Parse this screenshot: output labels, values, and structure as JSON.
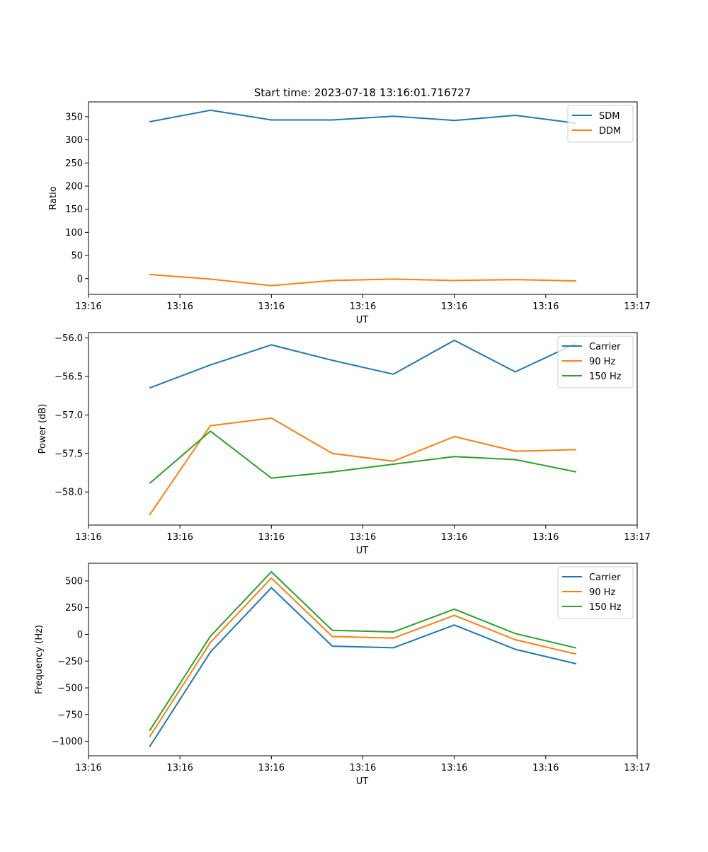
{
  "chart_data": [
    {
      "type": "line",
      "title": "Start time: 2023-07-18 13:16:01.716727",
      "xlabel": "UT",
      "ylabel": "Ratio",
      "x": [
        1,
        2,
        3,
        4,
        5,
        6,
        7,
        8
      ],
      "xticks": [
        0,
        1.5,
        3,
        4.5,
        6,
        7.5,
        9
      ],
      "xtick_labels": [
        "13:16",
        "13:16",
        "13:16",
        "13:16",
        "13:16",
        "13:16",
        "13:17"
      ],
      "xlim": [
        0.0,
        9.0
      ],
      "ylim": [
        -34,
        382
      ],
      "yticks": [
        0,
        50,
        100,
        150,
        200,
        250,
        300,
        350
      ],
      "ytick_labels": [
        "0",
        "50",
        "100",
        "150",
        "200",
        "250",
        "300",
        "350"
      ],
      "legend_position": "top-right",
      "series": [
        {
          "name": "SDM",
          "color": "#1f77b4",
          "values": [
            339,
            364,
            343,
            343,
            351,
            342,
            353,
            336
          ]
        },
        {
          "name": "DDM",
          "color": "#ff7f0e",
          "values": [
            9,
            -1,
            -15,
            -4,
            -1,
            -4,
            -2,
            -5
          ]
        }
      ]
    },
    {
      "type": "line",
      "title": "",
      "xlabel": "UT",
      "ylabel": "Power (dB)",
      "x": [
        1,
        2,
        3,
        4,
        5,
        6,
        7,
        8
      ],
      "xticks": [
        0,
        1.5,
        3,
        4.5,
        6,
        7.5,
        9
      ],
      "xtick_labels": [
        "13:16",
        "13:16",
        "13:16",
        "13:16",
        "13:16",
        "13:16",
        "13:17"
      ],
      "xlim": [
        0.0,
        9.0
      ],
      "ylim": [
        -58.43,
        -55.93
      ],
      "yticks": [
        -58.0,
        -57.5,
        -57.0,
        -56.5,
        -56.0
      ],
      "ytick_labels": [
        "−58.0",
        "−57.5",
        "−57.0",
        "−56.5",
        "−56.0"
      ],
      "legend_position": "top-right",
      "series": [
        {
          "name": "Carrier",
          "color": "#1f77b4",
          "values": [
            -56.65,
            -56.35,
            -56.09,
            -56.29,
            -56.47,
            -56.03,
            -56.44,
            -56.07
          ]
        },
        {
          "name": "90 Hz",
          "color": "#ff7f0e",
          "values": [
            -58.3,
            -57.14,
            -57.04,
            -57.5,
            -57.6,
            -57.28,
            -57.47,
            -57.45
          ]
        },
        {
          "name": "150 Hz",
          "color": "#2ca02c",
          "values": [
            -57.89,
            -57.21,
            -57.82,
            -57.74,
            -57.64,
            -57.54,
            -57.58,
            -57.74
          ]
        }
      ]
    },
    {
      "type": "line",
      "title": "",
      "xlabel": "UT",
      "ylabel": "Frequency (Hz)",
      "x": [
        1,
        2,
        3,
        4,
        5,
        6,
        7,
        8
      ],
      "xticks": [
        0,
        1.5,
        3,
        4.5,
        6,
        7.5,
        9
      ],
      "xtick_labels": [
        "13:16",
        "13:16",
        "13:16",
        "13:16",
        "13:16",
        "13:16",
        "13:17"
      ],
      "xlim": [
        0.0,
        9.0
      ],
      "ylim": [
        -1135,
        665
      ],
      "yticks": [
        -1000,
        -750,
        -500,
        -250,
        0,
        250,
        500
      ],
      "ytick_labels": [
        "−1000",
        "−750",
        "−500",
        "−250",
        "0",
        "250",
        "500"
      ],
      "legend_position": "top-right",
      "series": [
        {
          "name": "Carrier",
          "color": "#1f77b4",
          "values": [
            -1052,
            -165,
            437,
            -110,
            -125,
            88,
            -140,
            -275
          ]
        },
        {
          "name": "90 Hz",
          "color": "#ff7f0e",
          "values": [
            -960,
            -75,
            527,
            -20,
            -35,
            178,
            -50,
            -185
          ]
        },
        {
          "name": "150 Hz",
          "color": "#2ca02c",
          "values": [
            -902,
            -17,
            585,
            38,
            23,
            236,
            8,
            -127
          ]
        }
      ]
    }
  ]
}
